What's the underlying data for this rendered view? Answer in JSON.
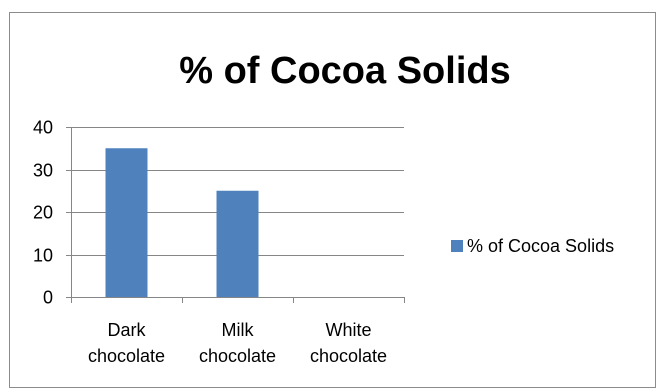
{
  "chart_data": {
    "type": "bar",
    "title": "% of Cocoa Solids",
    "categories": [
      "Dark chocolate",
      "Milk chocolate",
      "White chocolate"
    ],
    "category_lines": [
      [
        "Dark",
        "chocolate"
      ],
      [
        "Milk",
        "chocolate"
      ],
      [
        "White",
        "chocolate"
      ]
    ],
    "series": [
      {
        "name": "% of Cocoa Solids",
        "values": [
          35,
          25,
          0
        ],
        "color": "#4f81bd"
      }
    ],
    "ylim": [
      0,
      40
    ],
    "yticks": [
      0,
      10,
      20,
      30,
      40
    ],
    "xlabel": "",
    "ylabel": "",
    "grid": true,
    "legend": "right"
  }
}
